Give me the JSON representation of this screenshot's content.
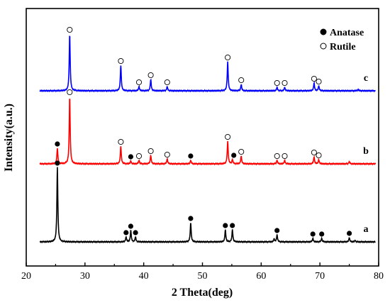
{
  "chart_data": {
    "type": "line",
    "xlabel": "2 Theta(deg)",
    "ylabel": "Intensity(a.u.)",
    "xlim": [
      20,
      80
    ],
    "xticks": [
      20,
      30,
      40,
      50,
      60,
      70,
      80
    ],
    "yticks_shown": false,
    "grid": false,
    "legend": {
      "placement": "top-right",
      "entries": [
        {
          "label": "Anatase",
          "marker": "filled-circle"
        },
        {
          "label": "Rutile",
          "marker": "open-circle"
        }
      ]
    },
    "series": [
      {
        "name": "a",
        "color": "#000000",
        "baseline": 0,
        "peaks": [
          {
            "x": 25.3,
            "h": 105
          },
          {
            "x": 37.0,
            "h": 7
          },
          {
            "x": 37.8,
            "h": 16
          },
          {
            "x": 38.6,
            "h": 7
          },
          {
            "x": 48.0,
            "h": 27
          },
          {
            "x": 53.9,
            "h": 17
          },
          {
            "x": 55.1,
            "h": 17
          },
          {
            "x": 62.2,
            "h": 4
          },
          {
            "x": 62.7,
            "h": 10
          },
          {
            "x": 68.8,
            "h": 5
          },
          {
            "x": 70.3,
            "h": 5
          },
          {
            "x": 75.0,
            "h": 6
          },
          {
            "x": 76.0,
            "h": 2
          }
        ],
        "markers": [
          {
            "x": 25.3,
            "type": "anatase"
          },
          {
            "x": 37.0,
            "type": "anatase"
          },
          {
            "x": 37.8,
            "type": "anatase"
          },
          {
            "x": 38.6,
            "type": "anatase"
          },
          {
            "x": 48.0,
            "type": "anatase"
          },
          {
            "x": 53.9,
            "type": "anatase"
          },
          {
            "x": 55.1,
            "type": "anatase"
          },
          {
            "x": 62.7,
            "type": "anatase"
          },
          {
            "x": 68.8,
            "type": "anatase"
          },
          {
            "x": 70.3,
            "type": "anatase"
          },
          {
            "x": 75.0,
            "type": "anatase"
          }
        ]
      },
      {
        "name": "b",
        "color": "#ff0000",
        "baseline": 110,
        "peaks": [
          {
            "x": 25.3,
            "h": 22
          },
          {
            "x": 27.4,
            "h": 95
          },
          {
            "x": 36.1,
            "h": 25
          },
          {
            "x": 37.8,
            "h": 4
          },
          {
            "x": 39.2,
            "h": 5
          },
          {
            "x": 41.2,
            "h": 12
          },
          {
            "x": 44.0,
            "h": 7
          },
          {
            "x": 48.0,
            "h": 5
          },
          {
            "x": 54.3,
            "h": 32
          },
          {
            "x": 55.1,
            "h": 6
          },
          {
            "x": 56.6,
            "h": 11
          },
          {
            "x": 62.7,
            "h": 5
          },
          {
            "x": 64.0,
            "h": 5
          },
          {
            "x": 69.0,
            "h": 10
          },
          {
            "x": 69.8,
            "h": 6
          },
          {
            "x": 75.0,
            "h": 3
          }
        ],
        "markers": [
          {
            "x": 25.3,
            "type": "anatase"
          },
          {
            "x": 27.4,
            "type": "rutile"
          },
          {
            "x": 36.1,
            "type": "rutile"
          },
          {
            "x": 37.8,
            "type": "anatase"
          },
          {
            "x": 39.2,
            "type": "rutile"
          },
          {
            "x": 41.2,
            "type": "rutile"
          },
          {
            "x": 44.0,
            "type": "rutile"
          },
          {
            "x": 48.0,
            "type": "anatase"
          },
          {
            "x": 54.3,
            "type": "rutile"
          },
          {
            "x": 55.1,
            "type": "anatase"
          },
          {
            "x": 56.6,
            "type": "rutile"
          },
          {
            "x": 62.7,
            "type": "rutile"
          },
          {
            "x": 64.0,
            "type": "rutile"
          },
          {
            "x": 69.0,
            "type": "rutile"
          },
          {
            "x": 69.8,
            "type": "rutile"
          }
        ]
      },
      {
        "name": "c",
        "color": "#0000ff",
        "baseline": 213,
        "peaks": [
          {
            "x": 27.4,
            "h": 80
          },
          {
            "x": 36.1,
            "h": 36
          },
          {
            "x": 39.2,
            "h": 6
          },
          {
            "x": 41.2,
            "h": 16
          },
          {
            "x": 44.0,
            "h": 6
          },
          {
            "x": 54.3,
            "h": 41
          },
          {
            "x": 56.6,
            "h": 9
          },
          {
            "x": 62.7,
            "h": 5
          },
          {
            "x": 64.0,
            "h": 5
          },
          {
            "x": 69.0,
            "h": 11
          },
          {
            "x": 69.8,
            "h": 7
          },
          {
            "x": 76.5,
            "h": 2
          }
        ],
        "markers": [
          {
            "x": 27.4,
            "type": "rutile"
          },
          {
            "x": 36.1,
            "type": "rutile"
          },
          {
            "x": 39.2,
            "type": "rutile"
          },
          {
            "x": 41.2,
            "type": "rutile"
          },
          {
            "x": 44.0,
            "type": "rutile"
          },
          {
            "x": 54.3,
            "type": "rutile"
          },
          {
            "x": 56.6,
            "type": "rutile"
          },
          {
            "x": 62.7,
            "type": "rutile"
          },
          {
            "x": 64.0,
            "type": "rutile"
          },
          {
            "x": 69.0,
            "type": "rutile"
          },
          {
            "x": 69.8,
            "type": "rutile"
          }
        ]
      }
    ]
  }
}
